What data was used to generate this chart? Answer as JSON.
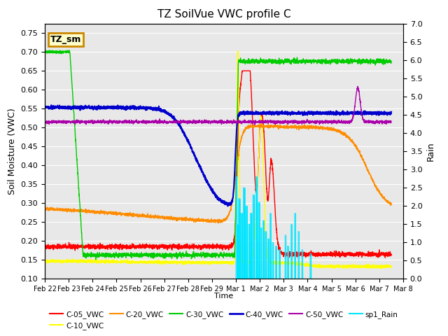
{
  "title": "TZ SoilVue VWC profile C",
  "xlabel": "Time",
  "ylabel_left": "Soil Moisture (VWC)",
  "ylabel_right": "Rain",
  "ylim_left": [
    0.1,
    0.775
  ],
  "ylim_right": [
    0.0,
    7.0
  ],
  "yticks_left": [
    0.1,
    0.15,
    0.2,
    0.25,
    0.3,
    0.35,
    0.4,
    0.45,
    0.5,
    0.55,
    0.6,
    0.65,
    0.7,
    0.75
  ],
  "xtick_labels": [
    "Feb 22",
    "Feb 23",
    "Feb 24",
    "Feb 25",
    "Feb 26",
    "Feb 27",
    "Feb 28",
    "Feb 29",
    "Mar 1",
    "Mar 2",
    "Mar 3",
    "Mar 4",
    "Mar 5",
    "Mar 6",
    "Mar 7",
    "Mar 8"
  ],
  "xtick_positions": [
    0,
    1,
    2,
    3,
    4,
    5,
    6,
    7,
    8,
    9,
    10,
    11,
    12,
    13,
    14,
    15
  ],
  "xlim": [
    0,
    14.5
  ],
  "colors": {
    "C05": "#ff0000",
    "C10": "#ffff00",
    "C20": "#ff8c00",
    "C30": "#00cc00",
    "C40": "#0000cc",
    "C50": "#aa00aa",
    "Rain": "#00e5ff",
    "TZ_sm_box_fill": "#ffffcc",
    "TZ_sm_box_edge": "#cc8800"
  },
  "bg_color": "#e8e8e8",
  "grid_color": "#ffffff",
  "annotation_box": "TZ_sm",
  "legend_entries": [
    "C-05_VWC",
    "C-10_VWC",
    "C-20_VWC",
    "C-30_VWC",
    "C-40_VWC",
    "C-50_VWC",
    "sp1_Rain"
  ]
}
